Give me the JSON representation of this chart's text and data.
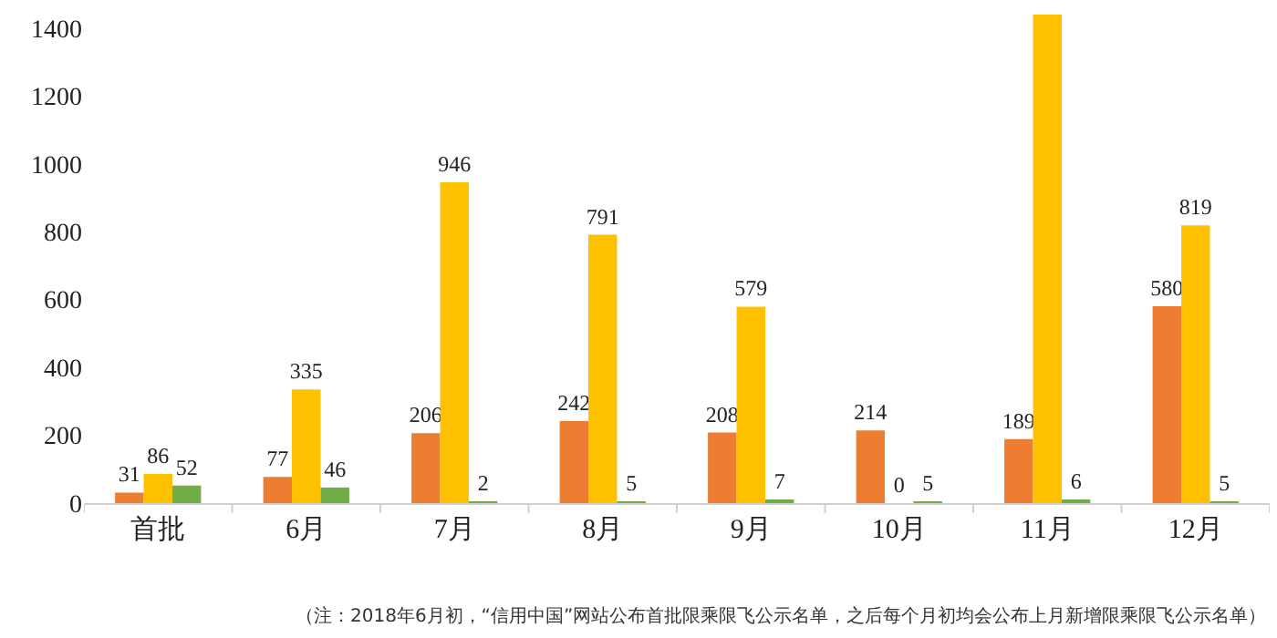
{
  "chart_data": {
    "type": "bar",
    "categories": [
      "首批",
      "6月",
      "7月",
      "8月",
      "9月",
      "10月",
      "11月",
      "12月"
    ],
    "series": [
      {
        "color": "#ed7d31",
        "values": [
          31,
          77,
          206,
          242,
          208,
          214,
          189,
          580
        ],
        "value_labels": [
          "31",
          "77",
          "206",
          "242",
          "208",
          "214",
          "189",
          "580"
        ]
      },
      {
        "color": "#ffc000",
        "values": [
          86,
          335,
          946,
          791,
          579,
          0,
          1440,
          819
        ],
        "value_labels": [
          "86",
          "335",
          "946",
          "791",
          "579",
          "0",
          null,
          "819"
        ]
      },
      {
        "color": "#70ad47",
        "values": [
          52,
          46,
          2,
          5,
          7,
          5,
          6,
          5
        ],
        "value_labels": [
          "52",
          "46",
          "2",
          "5",
          "7",
          "5",
          "6",
          "5"
        ]
      }
    ],
    "ylim": [
      0,
      1440
    ],
    "yticks": [
      0,
      200,
      400,
      600,
      800,
      1000,
      1200,
      1400
    ],
    "legend": false,
    "annotations": [
      "（注：2018年6月初，“信用中国”网站公布首批限乘限飞公示名单，之后每个月初均会公布上月新增限乘限飞公示名单）"
    ]
  }
}
